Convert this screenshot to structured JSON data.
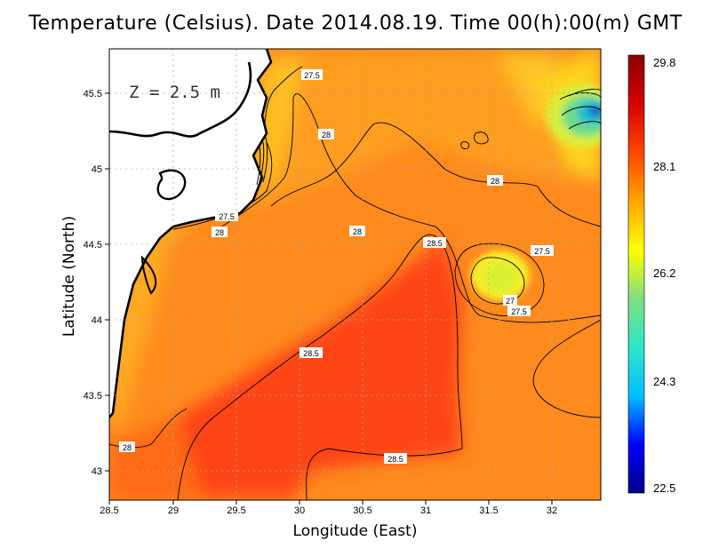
{
  "title": "Temperature (Celsius). Date 2014.08.19. Time 00(h):00(m) GMT",
  "depth_label": "Z = 2.5 m",
  "xlabel": "Longitude (East)",
  "ylabel": "Latitude (North)",
  "x_ticks": [
    "28.5",
    "29",
    "29.5",
    "30",
    "30.5",
    "31",
    "31.5",
    "32"
  ],
  "y_ticks": [
    "43",
    "43.5",
    "44",
    "44.5",
    "45",
    "45.5"
  ],
  "colorbar": {
    "tick_labels": [
      "29.8",
      "28.1",
      "26.2",
      "24.3",
      "22.5"
    ],
    "min": 22.5,
    "max": 29.8,
    "colors": [
      "#00008b",
      "#0000ff",
      "#00bfff",
      "#2ee6c8",
      "#7fe07f",
      "#ffff00",
      "#ffa500",
      "#ff4500",
      "#d60000",
      "#8b0000"
    ]
  },
  "contour_labels": [
    "27.5",
    "28",
    "28",
    "27.5",
    "28",
    "28",
    "28.5",
    "27.5",
    "27",
    "27.5",
    "28.5",
    "28",
    "28.5"
  ],
  "colors": {
    "land": "#ffffff",
    "coast": "#000000",
    "warm_core": "#ff4a12",
    "sea": "#ff8a1e"
  }
}
